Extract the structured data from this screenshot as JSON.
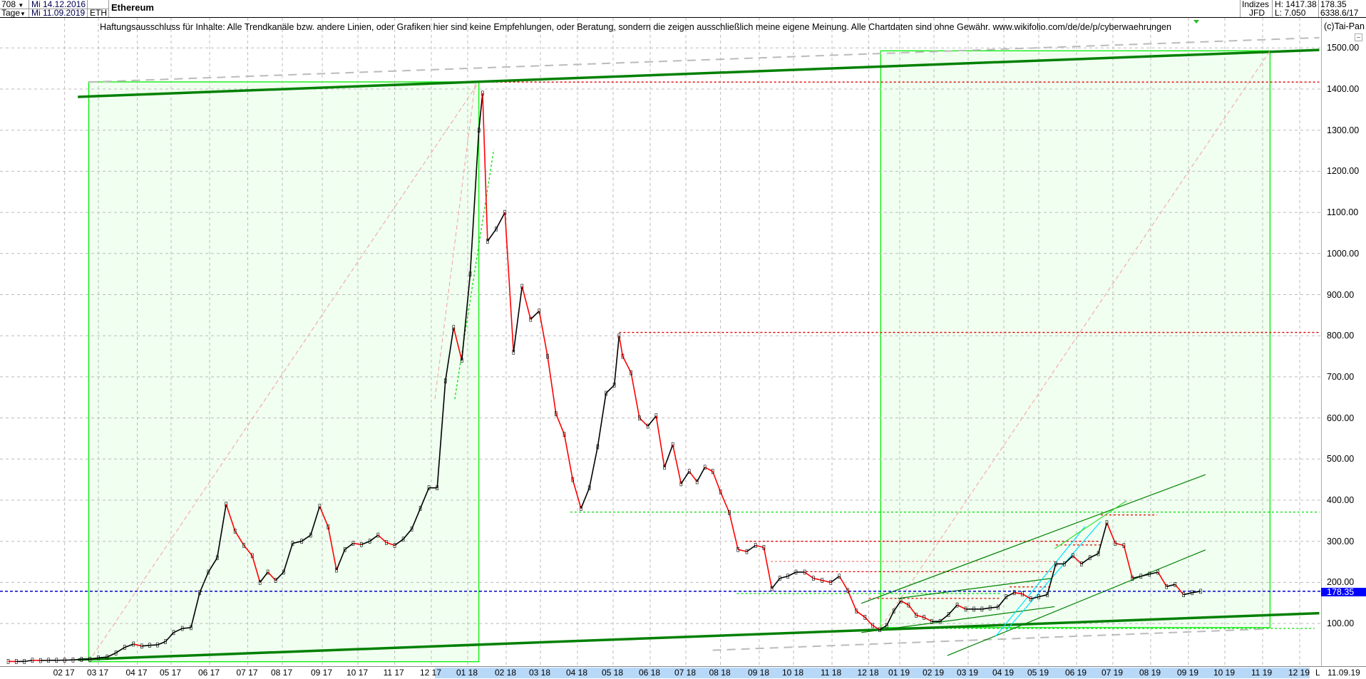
{
  "header": {
    "bars_select": "708",
    "period_select": "Tage",
    "date_from": "Mi 14.12.2016",
    "date_to": "Mi 11.09.2019",
    "symbol": "ETH",
    "title": "Ethereum",
    "exchange_group": "Indizes",
    "exchange": "JFD",
    "high": "H: 1417.38",
    "low": "L: 7.050",
    "last": "178.35",
    "volume": "6338.6/17",
    "copyright": "(c)Tai-Pan"
  },
  "disclaimer": "Haftungsausschluss für Inhalte: Alle Trendkanäle bzw. andere Linien, oder Grafiken hier sind keine Empfehlungen, oder Beratung, sondern die zeigen ausschließlich meine eigene Meinung. Alle Chartdaten sind ohne Gewähr.  www.wikifolio.com/de/de/p/cyberwaehrungen",
  "chart_data": {
    "type": "line",
    "title": "Ethereum",
    "ylim": [
      0,
      1500
    ],
    "grid": true,
    "y_ticks": [
      "100.00",
      "200.00",
      "300.00",
      "400.00",
      "500.00",
      "600.00",
      "700.00",
      "800.00",
      "900.00",
      "1000.00",
      "1100.00",
      "1200.00",
      "1300.00",
      "1400.00",
      "1500.00"
    ],
    "x_ticks": [
      "02 17",
      "03 17",
      "04 17",
      "05 17",
      "06 17",
      "07 17",
      "08 17",
      "09 17",
      "10 17",
      "11 17",
      "12 17",
      "01 18",
      "02 18",
      "03 18",
      "04 18",
      "05 18",
      "06 18",
      "07 18",
      "08 18",
      "09 18",
      "10 18",
      "11 18",
      "12 18",
      "01 19",
      "02 19",
      "03 19",
      "04 19",
      "05 19",
      "06 19",
      "07 19",
      "08 19",
      "09 19",
      "10 19",
      "11 19",
      "12 19"
    ],
    "x_end_marker": "L",
    "x_end_date": "11.09.19",
    "current_price": 178.35,
    "current_price_label": "178.35",
    "colors": {
      "up": "#000000",
      "down": "#ff0000",
      "trend": "#008000",
      "box": "#00ee00",
      "box_fill": "#f0fff0",
      "current": "#0000c8"
    },
    "series": [
      {
        "values": [
          [
            "2016-12-14",
            7.8
          ],
          [
            "2016-12-21",
            7.6
          ],
          [
            "2016-12-28",
            7.7
          ],
          [
            "2017-01-04",
            10.5
          ],
          [
            "2017-01-11",
            9.9
          ],
          [
            "2017-01-18",
            10.5
          ],
          [
            "2017-01-25",
            10.5
          ],
          [
            "2017-02-01",
            10.8
          ],
          [
            "2017-02-08",
            11.4
          ],
          [
            "2017-02-15",
            12.8
          ],
          [
            "2017-02-22",
            13.2
          ],
          [
            "2017-03-01",
            16.5
          ],
          [
            "2017-03-08",
            18.5
          ],
          [
            "2017-03-15",
            28.5
          ],
          [
            "2017-03-22",
            42
          ],
          [
            "2017-03-29",
            50
          ],
          [
            "2017-04-05",
            45
          ],
          [
            "2017-04-12",
            47
          ],
          [
            "2017-04-19",
            48
          ],
          [
            "2017-04-26",
            56
          ],
          [
            "2017-05-03",
            78
          ],
          [
            "2017-05-10",
            88
          ],
          [
            "2017-05-17",
            90
          ],
          [
            "2017-05-24",
            175
          ],
          [
            "2017-05-31",
            225
          ],
          [
            "2017-06-07",
            260
          ],
          [
            "2017-06-14",
            390
          ],
          [
            "2017-06-21",
            325
          ],
          [
            "2017-06-28",
            290
          ],
          [
            "2017-07-05",
            265
          ],
          [
            "2017-07-12",
            200
          ],
          [
            "2017-07-19",
            225
          ],
          [
            "2017-07-26",
            205
          ],
          [
            "2017-08-02",
            225
          ],
          [
            "2017-08-09",
            295
          ],
          [
            "2017-08-16",
            300
          ],
          [
            "2017-08-23",
            315
          ],
          [
            "2017-08-30",
            385
          ],
          [
            "2017-09-06",
            335
          ],
          [
            "2017-09-13",
            230
          ],
          [
            "2017-09-20",
            280
          ],
          [
            "2017-09-27",
            295
          ],
          [
            "2017-10-04",
            292
          ],
          [
            "2017-10-11",
            300
          ],
          [
            "2017-10-18",
            315
          ],
          [
            "2017-10-25",
            297
          ],
          [
            "2017-11-01",
            290
          ],
          [
            "2017-11-08",
            305
          ],
          [
            "2017-11-15",
            330
          ],
          [
            "2017-11-22",
            380
          ],
          [
            "2017-11-29",
            430
          ],
          [
            "2017-12-06",
            430
          ],
          [
            "2017-12-13",
            690
          ],
          [
            "2017-12-20",
            820
          ],
          [
            "2017-12-27",
            740
          ],
          [
            "2018-01-03",
            950
          ],
          [
            "2018-01-10",
            1300
          ],
          [
            "2018-01-13",
            1390
          ],
          [
            "2018-01-17",
            1030
          ],
          [
            "2018-01-24",
            1060
          ],
          [
            "2018-01-31",
            1100
          ],
          [
            "2018-02-07",
            760
          ],
          [
            "2018-02-14",
            920
          ],
          [
            "2018-02-21",
            840
          ],
          [
            "2018-02-28",
            860
          ],
          [
            "2018-03-07",
            750
          ],
          [
            "2018-03-14",
            610
          ],
          [
            "2018-03-21",
            560
          ],
          [
            "2018-03-28",
            450
          ],
          [
            "2018-04-04",
            380
          ],
          [
            "2018-04-11",
            430
          ],
          [
            "2018-04-18",
            530
          ],
          [
            "2018-04-25",
            660
          ],
          [
            "2018-05-02",
            680
          ],
          [
            "2018-05-06",
            800
          ],
          [
            "2018-05-09",
            750
          ],
          [
            "2018-05-16",
            710
          ],
          [
            "2018-05-23",
            600
          ],
          [
            "2018-05-30",
            580
          ],
          [
            "2018-06-06",
            605
          ],
          [
            "2018-06-13",
            480
          ],
          [
            "2018-06-20",
            535
          ],
          [
            "2018-06-27",
            440
          ],
          [
            "2018-07-04",
            470
          ],
          [
            "2018-07-11",
            445
          ],
          [
            "2018-07-18",
            480
          ],
          [
            "2018-07-25",
            470
          ],
          [
            "2018-08-01",
            420
          ],
          [
            "2018-08-08",
            370
          ],
          [
            "2018-08-15",
            280
          ],
          [
            "2018-08-22",
            275
          ],
          [
            "2018-08-29",
            290
          ],
          [
            "2018-09-05",
            285
          ],
          [
            "2018-09-12",
            185
          ],
          [
            "2018-09-19",
            210
          ],
          [
            "2018-09-26",
            215
          ],
          [
            "2018-10-03",
            225
          ],
          [
            "2018-10-10",
            225
          ],
          [
            "2018-10-17",
            210
          ],
          [
            "2018-10-24",
            205
          ],
          [
            "2018-10-31",
            200
          ],
          [
            "2018-11-07",
            215
          ],
          [
            "2018-11-14",
            180
          ],
          [
            "2018-11-21",
            130
          ],
          [
            "2018-11-28",
            115
          ],
          [
            "2018-12-05",
            95
          ],
          [
            "2018-12-12",
            85
          ],
          [
            "2018-12-19",
            95
          ],
          [
            "2018-12-26",
            130
          ],
          [
            "2019-01-02",
            155
          ],
          [
            "2019-01-09",
            145
          ],
          [
            "2019-01-16",
            120
          ],
          [
            "2019-01-23",
            115
          ],
          [
            "2019-01-30",
            105
          ],
          [
            "2019-02-06",
            105
          ],
          [
            "2019-02-13",
            122
          ],
          [
            "2019-02-20",
            145
          ],
          [
            "2019-02-27",
            135
          ],
          [
            "2019-03-06",
            135
          ],
          [
            "2019-03-13",
            135
          ],
          [
            "2019-03-20",
            138
          ],
          [
            "2019-03-27",
            140
          ],
          [
            "2019-04-03",
            165
          ],
          [
            "2019-04-10",
            175
          ],
          [
            "2019-04-17",
            172
          ],
          [
            "2019-04-24",
            160
          ],
          [
            "2019-05-01",
            165
          ],
          [
            "2019-05-08",
            170
          ],
          [
            "2019-05-15",
            245
          ],
          [
            "2019-05-22",
            245
          ],
          [
            "2019-05-29",
            265
          ],
          [
            "2019-06-05",
            245
          ],
          [
            "2019-06-12",
            260
          ],
          [
            "2019-06-19",
            270
          ],
          [
            "2019-06-26",
            345
          ],
          [
            "2019-07-03",
            295
          ],
          [
            "2019-07-10",
            290
          ],
          [
            "2019-07-17",
            210
          ],
          [
            "2019-07-24",
            215
          ],
          [
            "2019-07-31",
            220
          ],
          [
            "2019-08-07",
            225
          ],
          [
            "2019-08-14",
            190
          ],
          [
            "2019-08-21",
            195
          ],
          [
            "2019-08-28",
            170
          ],
          [
            "2019-09-04",
            175
          ],
          [
            "2019-09-11",
            178.35
          ]
        ]
      }
    ],
    "boxes": [
      {
        "from": [
          "2017-02-21",
          7.05
        ],
        "to": [
          "2018-01-10",
          1417.38
        ]
      },
      {
        "from": [
          "2018-12-13",
          90
        ],
        "to": [
          "2019-11-07",
          1493
        ]
      }
    ],
    "trendlines": [
      {
        "points": [
          [
            "2017-02-12",
            1381
          ],
          [
            "2019-12-18",
            1495
          ]
        ],
        "color": "#008000",
        "style": "thick"
      },
      {
        "points": [
          [
            "2017-02-12",
            12
          ],
          [
            "2019-12-18",
            125
          ]
        ],
        "color": "#008000",
        "style": "thick"
      },
      {
        "points": [
          [
            "2017-02-21",
            1417
          ],
          [
            "2019-12-18",
            1525
          ]
        ],
        "color": "#bbbbbb",
        "style": "dashed"
      },
      {
        "points": [
          [
            "2018-07-25",
            35
          ],
          [
            "2019-11-06",
            87
          ]
        ],
        "color": "#bbbbbb",
        "style": "dashed"
      },
      {
        "points": [
          [
            "2017-02-21",
            7.05
          ],
          [
            "2018-01-10",
            1417
          ]
        ],
        "color": "#f4a0a0",
        "style": "dashed-thin"
      },
      {
        "points": [
          [
            "2018-12-13",
            90
          ],
          [
            "2019-11-07",
            1493
          ]
        ],
        "color": "#f4a0a0",
        "style": "dashed-thin"
      },
      {
        "points": [
          [
            "2017-12-04",
            646
          ],
          [
            "2018-01-07",
            1413
          ]
        ],
        "color": "#f4a0a0",
        "style": "dashed-thin"
      },
      {
        "points": [
          [
            "2017-12-21",
            646
          ],
          [
            "2018-01-22",
            1253
          ]
        ],
        "color": "#00dd00",
        "style": "dotted"
      },
      {
        "points": [
          [
            "2018-11-25",
            149
          ],
          [
            "2019-09-15",
            462
          ]
        ],
        "color": "#008000",
        "style": "thin"
      },
      {
        "points": [
          [
            "2019-02-12",
            22
          ],
          [
            "2019-09-15",
            279
          ]
        ],
        "color": "#008000",
        "style": "thin"
      },
      {
        "points": [
          [
            "2018-11-25",
            78
          ],
          [
            "2019-05-14",
            141
          ]
        ],
        "color": "#008000",
        "style": "thin"
      },
      {
        "points": [
          [
            "2018-12-30",
            161
          ],
          [
            "2019-05-12",
            210
          ]
        ],
        "color": "#008000",
        "style": "thin"
      },
      {
        "points": [
          [
            "2019-03-25",
            69
          ],
          [
            "2019-06-08",
            336
          ]
        ],
        "color": "#00e0ff",
        "style": "thin"
      },
      {
        "points": [
          [
            "2019-04-03",
            83
          ],
          [
            "2019-06-21",
            348
          ]
        ],
        "color": "#00e0ff",
        "style": "thin"
      },
      {
        "points": [
          [
            "2019-05-14",
            282
          ],
          [
            "2019-07-12",
            398
          ]
        ],
        "color": "#33dd33",
        "style": "thin"
      }
    ],
    "hlines": [
      {
        "price": 1417,
        "from": "2018-01-10",
        "to": "2019-12-18",
        "color": "#e00000"
      },
      {
        "price": 808,
        "from": "2018-05-06",
        "to": "2019-12-18",
        "color": "#e00000"
      },
      {
        "price": 371,
        "from": "2018-03-26",
        "to": "2019-12-18",
        "color": "#00dd00"
      },
      {
        "price": 300,
        "from": "2018-08-21",
        "to": "2019-06-21",
        "color": "#e00000"
      },
      {
        "price": 251,
        "from": "2018-09-11",
        "to": "2019-05-15",
        "color": "#f08080"
      },
      {
        "price": 226,
        "from": "2018-10-11",
        "to": "2019-05-12",
        "color": "#e00000"
      },
      {
        "price": 173,
        "from": "2018-08-14",
        "to": "2019-03-29",
        "color": "#00dd00"
      },
      {
        "price": 161,
        "from": "2018-12-01",
        "to": "2019-03-30",
        "color": "#e00000"
      },
      {
        "price": 364,
        "from": "2019-06-21",
        "to": "2019-08-06",
        "color": "#e00000"
      },
      {
        "price": 291,
        "from": "2019-05-15",
        "to": "2019-06-21",
        "color": "#e00000"
      },
      {
        "price": 189,
        "from": "2019-04-06",
        "to": "2019-05-11",
        "color": "#e00000"
      },
      {
        "price": 88,
        "from": "2019-01-27",
        "to": "2019-12-14",
        "color": "#00dd00"
      }
    ]
  }
}
